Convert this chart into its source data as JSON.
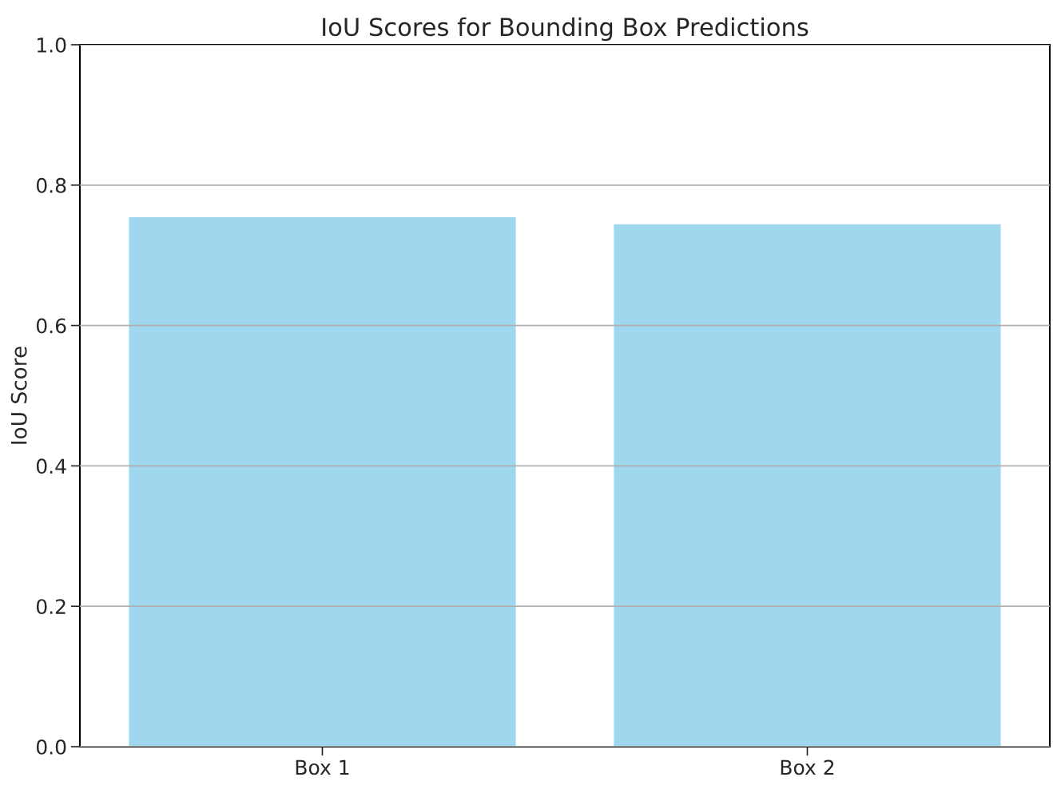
{
  "chart_data": {
    "type": "bar",
    "title": "IoU Scores for Bounding Box Predictions",
    "ylabel": "IoU Score",
    "categories": [
      "Box 1",
      "Box 2"
    ],
    "values": [
      0.755,
      0.745
    ],
    "color": "#9fd7ef",
    "ylim": [
      0,
      1
    ],
    "yticks": [
      {
        "value": 0,
        "label": "0.0"
      },
      0.2,
      0.4,
      0.6,
      0.8,
      {
        "value": 1,
        "label": "1.0"
      }
    ],
    "grid": "y"
  }
}
